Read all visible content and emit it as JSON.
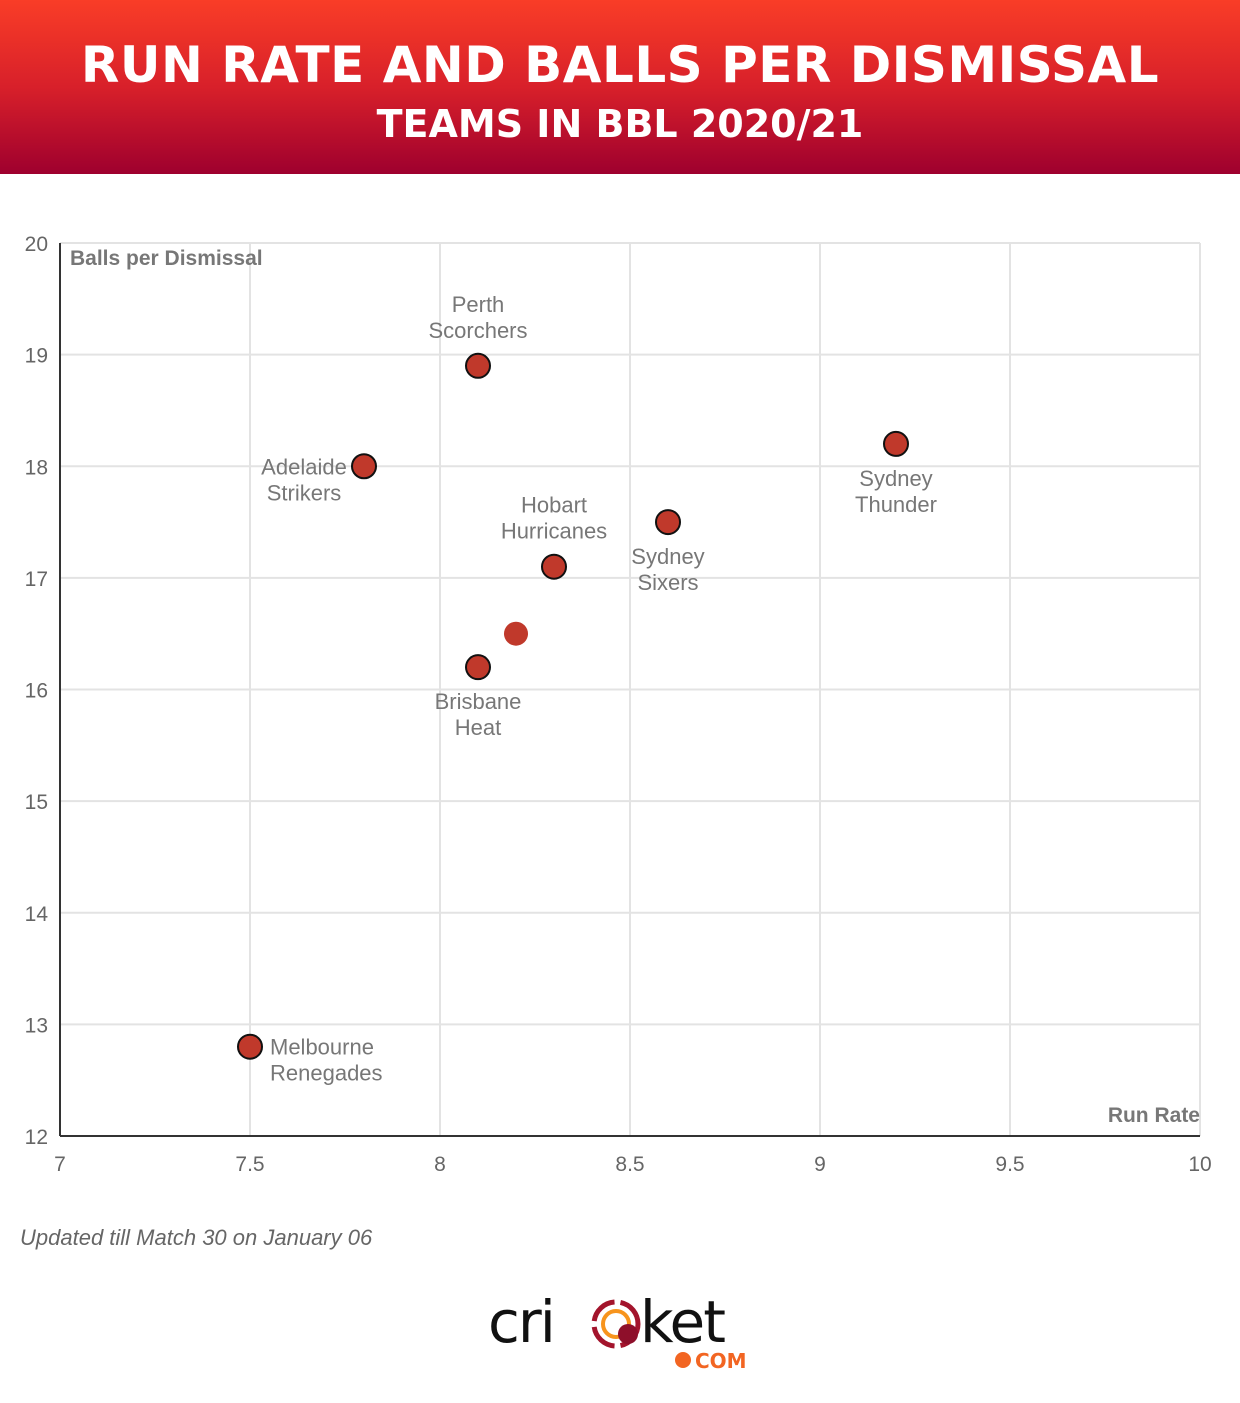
{
  "header": {
    "title": "RUN RATE AND BALLS PER DISMISSAL",
    "subtitle": "TEAMS IN BBL 2020/21"
  },
  "chart_data": {
    "type": "scatter",
    "title": "RUN RATE AND BALLS PER DISMISSAL",
    "subtitle": "TEAMS IN BBL 2020/21",
    "xlabel": "Run Rate",
    "ylabel": "Balls per Dismissal",
    "xlim": [
      7,
      10
    ],
    "ylim": [
      12,
      20
    ],
    "xticks": [
      "7",
      "7.5",
      "8",
      "8.5",
      "9",
      "9.5",
      "10"
    ],
    "yticks": [
      "12",
      "13",
      "14",
      "15",
      "16",
      "17",
      "18",
      "19",
      "20"
    ],
    "grid": true,
    "points": [
      {
        "label": [
          "Perth",
          "Scorchers"
        ],
        "x": 8.1,
        "y": 18.9,
        "pos": "above"
      },
      {
        "label": [
          "Adelaide",
          "Strikers"
        ],
        "x": 7.8,
        "y": 18.0,
        "pos": "left"
      },
      {
        "label": [
          "Sydney",
          "Thunder"
        ],
        "x": 9.2,
        "y": 18.2,
        "pos": "below"
      },
      {
        "label": [
          "Sydney",
          "Sixers"
        ],
        "x": 8.6,
        "y": 17.5,
        "pos": "below"
      },
      {
        "label": [
          "Hobart",
          "Hurricanes"
        ],
        "x": 8.3,
        "y": 17.1,
        "pos": "above"
      },
      {
        "label": [],
        "x": 8.2,
        "y": 16.5,
        "pos": "none",
        "average": true
      },
      {
        "label": [
          "Brisbane",
          "Heat"
        ],
        "x": 8.1,
        "y": 16.2,
        "pos": "below"
      },
      {
        "label": [
          "Melbourne",
          "Renegades"
        ],
        "x": 7.5,
        "y": 12.8,
        "pos": "right"
      }
    ]
  },
  "footnote": "Updated till Match 30 on January 06",
  "logo": {
    "text": "cricket",
    "suffix": "COM"
  },
  "colors": {
    "point": "#c0392b",
    "header_top": "#f93d27",
    "header_bottom": "#9e002e",
    "logo_orange": "#f26522"
  }
}
